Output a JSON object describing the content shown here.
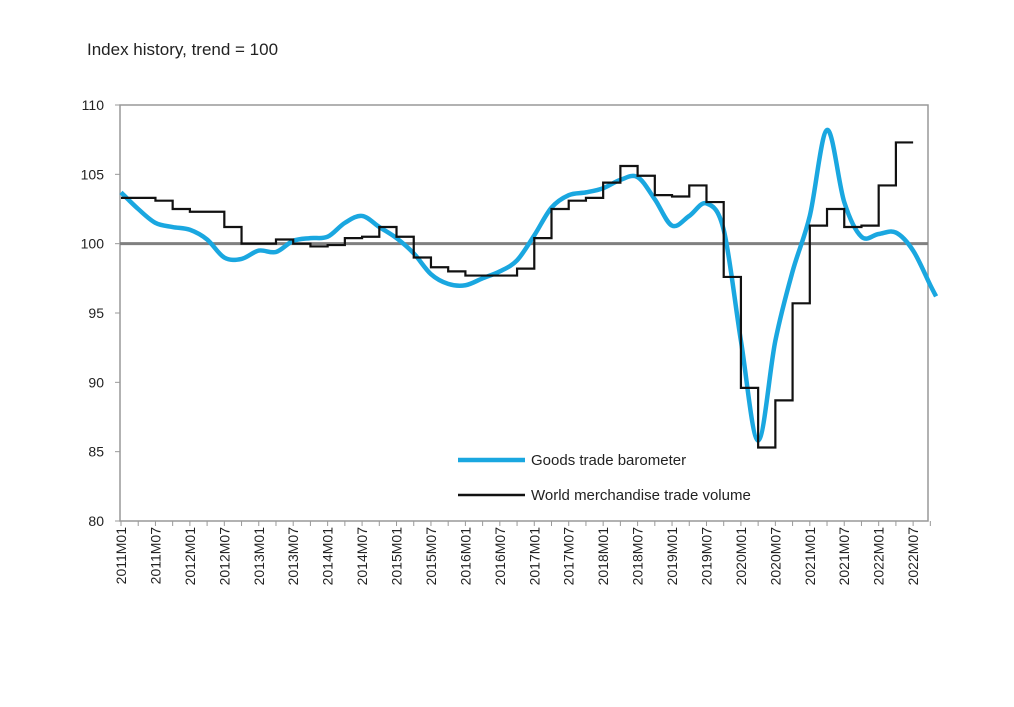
{
  "chart_data": {
    "type": "line",
    "title": "Index history, trend = 100",
    "xlabel": "",
    "ylabel": "",
    "ylim": [
      80,
      110
    ],
    "yticks": [
      80,
      85,
      90,
      95,
      100,
      105,
      110
    ],
    "reference_line": 100,
    "xticks": [
      "2011M01",
      "2011M07",
      "2012M01",
      "2012M07",
      "2013M01",
      "2013M07",
      "2014M01",
      "2014M07",
      "2015M01",
      "2015M07",
      "2016M01",
      "2016M07",
      "2017M01",
      "2017M07",
      "2018M01",
      "2018M07",
      "2019M01",
      "2019M07",
      "2020M01",
      "2020M07",
      "2021M01",
      "2021M07",
      "2022M01",
      "2022M07"
    ],
    "legend_position": "bottom-right-inside",
    "series": [
      {
        "name": "Goods trade barometer",
        "color": "#1aa7e0",
        "x_months_from_2011M01": [
          0,
          3,
          6,
          9,
          12,
          15,
          18,
          21,
          24,
          27,
          30,
          33,
          36,
          39,
          42,
          45,
          48,
          51,
          54,
          57,
          60,
          63,
          66,
          69,
          72,
          75,
          78,
          81,
          84,
          87,
          90,
          93,
          96,
          99,
          102,
          105,
          108,
          111,
          114,
          117,
          120,
          123,
          126,
          129,
          132,
          135,
          138,
          141,
          142
        ],
        "values": [
          103.7,
          102.5,
          101.5,
          101.2,
          101.0,
          100.3,
          99.0,
          98.9,
          99.5,
          99.4,
          100.2,
          100.4,
          100.5,
          101.5,
          102.0,
          101.2,
          100.4,
          99.3,
          97.8,
          97.1,
          97.0,
          97.5,
          98.0,
          98.8,
          100.6,
          102.6,
          103.5,
          103.7,
          104.0,
          104.6,
          104.8,
          103.2,
          101.3,
          102.0,
          102.9,
          101.0,
          93.0,
          85.8,
          93.0,
          98.0,
          102.0,
          108.2,
          103.0,
          100.5,
          100.7,
          100.8,
          99.5,
          97.0,
          96.2
        ]
      },
      {
        "name": "World merchandise trade volume",
        "color": "#111111",
        "step": true,
        "x_months_from_2011M01": [
          0,
          3,
          6,
          9,
          12,
          15,
          18,
          21,
          24,
          27,
          30,
          33,
          36,
          39,
          42,
          45,
          48,
          51,
          54,
          57,
          60,
          63,
          66,
          69,
          72,
          75,
          78,
          81,
          84,
          87,
          90,
          93,
          96,
          99,
          102,
          105,
          108,
          111,
          114,
          117,
          120,
          123,
          126,
          129,
          132,
          135
        ],
        "values": [
          103.3,
          103.3,
          103.1,
          102.5,
          102.3,
          102.3,
          101.2,
          100.0,
          100.0,
          100.3,
          100.0,
          99.8,
          99.9,
          100.4,
          100.5,
          101.2,
          100.5,
          99.0,
          98.3,
          98.0,
          97.7,
          97.7,
          97.7,
          98.2,
          100.4,
          102.5,
          103.1,
          103.3,
          104.4,
          105.6,
          104.9,
          103.5,
          103.4,
          104.2,
          103.0,
          97.6,
          89.6,
          85.3,
          88.7,
          95.7,
          101.3,
          102.5,
          101.2,
          101.3,
          104.2,
          107.3
        ]
      }
    ]
  }
}
